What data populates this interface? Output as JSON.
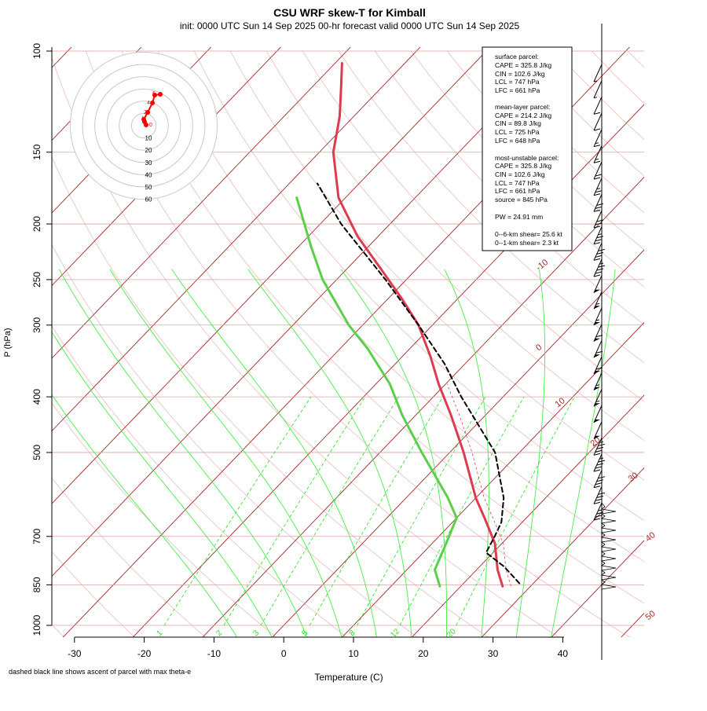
{
  "title": "CSU WRF skew-T for Kimball",
  "subtitle": "init: 0000 UTC Sun 14 Sep 2025    00-hr forecast valid 0000 UTC Sun 14 Sep 2025",
  "footnote": "dashed black line shows ascent of parcel with max theta-e",
  "colors": {
    "temperature": "#dc3c50",
    "dewpoint": "#5ccf4a",
    "parcel": "#000000",
    "isotherm": "#a52a2a",
    "mixing_ratio": "#22dd22",
    "dry_adiabat_light": "#e8b5b5"
  },
  "stats_box": {
    "surface_header": "surface parcel:",
    "surface_lines": [
      "CAPE = 325.8 J/kg",
      "CIN = 102.6 J/kg",
      "LCL = 747 hPa",
      "LFC = 661 hPa"
    ],
    "mean_header": "mean-layer parcel:",
    "mean_lines": [
      "CAPE = 214.2 J/kg",
      "CIN = 89.8 J/kg",
      "LCL = 725 hPa",
      "LFC = 648 hPa"
    ],
    "mu_header": "most-unstable parcel:",
    "mu_lines": [
      "CAPE = 325.8 J/kg",
      "CIN = 102.6 J/kg",
      "LCL = 747 hPa",
      "LFC = 661 hPa",
      "source = 845 hPa"
    ],
    "pw_line": "PW =  24.91 mm",
    "shear_lines": [
      "0--6-km shear= 25.6 kt",
      "0--1-km shear= 2.3 kt"
    ]
  },
  "hodograph": {
    "ring_labels": [
      "10",
      "20",
      "30",
      "40",
      "50",
      "60"
    ],
    "point_labels": [
      "6",
      "4",
      "2",
      "1",
      "0"
    ]
  },
  "chart_data": {
    "type": "line",
    "title": "CSU WRF skew-T for Kimball",
    "xlabel": "Temperature (C)",
    "ylabel": "P (hPa)",
    "xlim": [
      -33,
      45
    ],
    "ylim": [
      1000,
      100
    ],
    "y_scale": "log",
    "x_ticks": [
      "-30",
      "-20",
      "-10",
      "0",
      "10",
      "20",
      "30",
      "40"
    ],
    "y_ticks": [
      "100",
      "150",
      "200",
      "250",
      "300",
      "400",
      "500",
      "700",
      "850",
      "1000"
    ],
    "isotherm_labels": [
      "-10",
      "0",
      "10",
      "20",
      "30",
      "40",
      "50"
    ],
    "mixing_ratio_labels": [
      "1",
      "2",
      "3",
      "5",
      "8",
      "12",
      "20"
    ],
    "series": [
      {
        "name": "temperature",
        "pressure": [
          855,
          800,
          720,
          650,
          600,
          500,
          430,
          380,
          340,
          300,
          270,
          240,
          210,
          180,
          150,
          130,
          115,
          105
        ],
        "values": [
          26,
          23,
          19,
          14,
          10,
          2,
          -5,
          -11,
          -16,
          -22,
          -28,
          -35,
          -43,
          -51,
          -58,
          -62,
          -66,
          -69
        ]
      },
      {
        "name": "dewpoint",
        "pressure": [
          855,
          800,
          720,
          650,
          600,
          500,
          430,
          380,
          330,
          300,
          250,
          220,
          180
        ],
        "values": [
          17,
          14,
          12,
          10,
          6,
          -4,
          -12,
          -18,
          -26,
          -32,
          -42,
          -48,
          -57
        ]
      },
      {
        "name": "parcel ascent",
        "pressure": [
          845,
          790,
          747,
          700,
          661,
          600,
          500,
          400,
          350,
          300,
          250,
          200,
          170
        ],
        "values": [
          28,
          23.5,
          19,
          18,
          17,
          14,
          6.5,
          -6,
          -13,
          -22,
          -33,
          -47,
          -56
        ]
      }
    ],
    "wind_barbs_kt": [
      5,
      5,
      10,
      10,
      15,
      15,
      20,
      25,
      30,
      30,
      35,
      40,
      45,
      50,
      55,
      55,
      60,
      60,
      60,
      55,
      55,
      50,
      50,
      45,
      45,
      40,
      40,
      35
    ]
  }
}
